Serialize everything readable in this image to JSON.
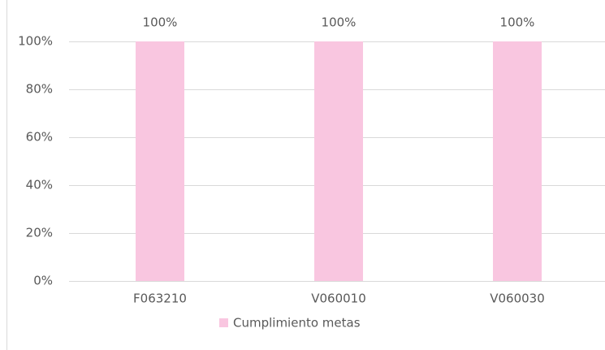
{
  "chart_data": {
    "type": "bar",
    "categories": [
      "F063210",
      "V060010",
      "V060030"
    ],
    "series": [
      {
        "name": "Cumplimiento metas",
        "color": "#f9c6e0",
        "values": [
          100,
          100,
          100
        ],
        "value_labels": [
          "100%",
          "100%",
          "100%"
        ]
      }
    ],
    "ylim": [
      0,
      100
    ],
    "yticks": [
      {
        "value": 0,
        "label": "0%"
      },
      {
        "value": 20,
        "label": "20%"
      },
      {
        "value": 40,
        "label": "40%"
      },
      {
        "value": 60,
        "label": "60%"
      },
      {
        "value": 80,
        "label": "80%"
      },
      {
        "value": 100,
        "label": "100%"
      }
    ],
    "grid": true,
    "legend": "bottom"
  }
}
